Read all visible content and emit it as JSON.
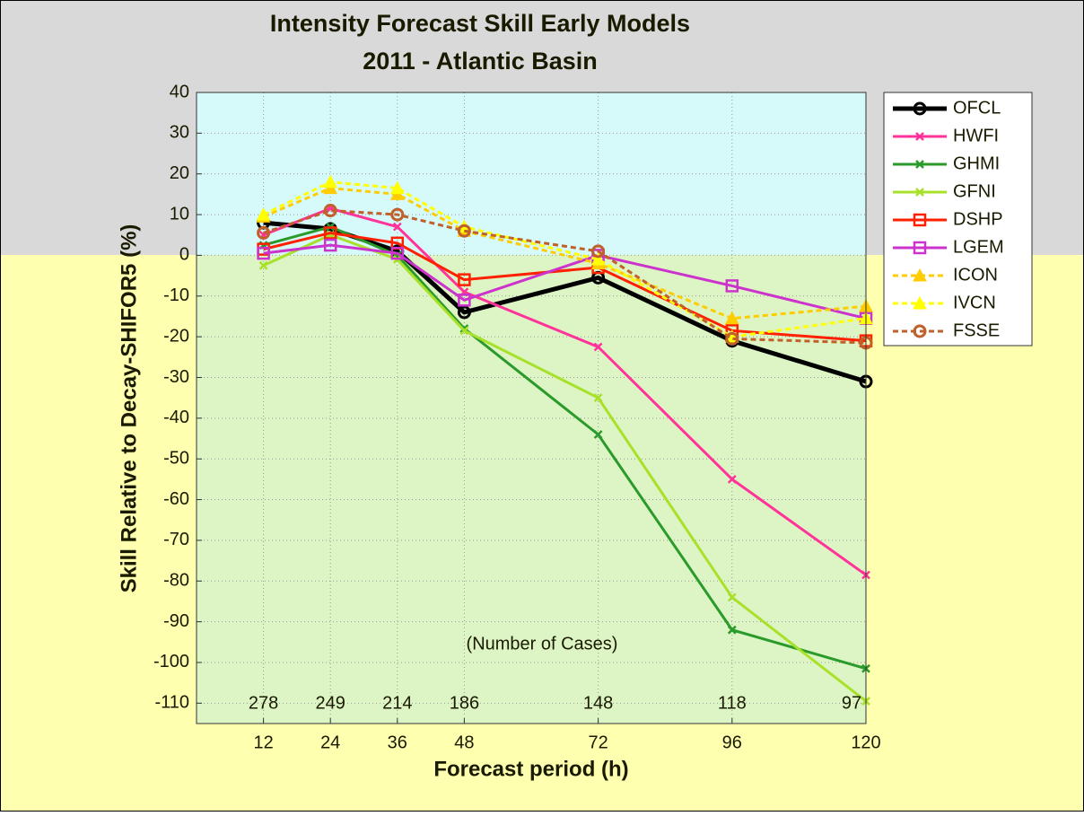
{
  "chart_data": {
    "type": "line",
    "title": "Intensity Forecast Skill Early Models",
    "subtitle": "2011 - Atlantic Basin",
    "y_label": "Skill Relative to Decay-SHIFOR5 (%)",
    "x_label": "Forecast period (h)",
    "annotation": "(Number of Cases)",
    "x": [
      12,
      24,
      36,
      48,
      72,
      96,
      120
    ],
    "cases": [
      "278",
      "249",
      "214",
      "186",
      "148",
      "118",
      "97"
    ],
    "xlim": [
      0,
      120
    ],
    "xticks": [
      12,
      24,
      36,
      48,
      72,
      96,
      120
    ],
    "ylim": [
      -115,
      40
    ],
    "yticks": [
      -110,
      -100,
      -90,
      -80,
      -70,
      -60,
      -50,
      -40,
      -30,
      -20,
      -10,
      0,
      10,
      20,
      30,
      40
    ],
    "grid": true,
    "series": [
      {
        "name": "OFCL",
        "color": "#000000",
        "marker": "circle",
        "dashed": false,
        "values": [
          8,
          6.5,
          1,
          -14,
          -5.5,
          -21,
          -31
        ]
      },
      {
        "name": "HWFI",
        "color": "#ff3399",
        "marker": "x",
        "dashed": false,
        "values": [
          5,
          11.5,
          7,
          -9,
          -22.5,
          -55,
          -78.5
        ]
      },
      {
        "name": "GHMI",
        "color": "#2a9a2a",
        "marker": "x",
        "dashed": false,
        "values": [
          2.5,
          7,
          0,
          -18,
          -44,
          -92,
          -101.5
        ]
      },
      {
        "name": "GFNI",
        "color": "#a8e02a",
        "marker": "x",
        "dashed": false,
        "values": [
          -2.5,
          5,
          -1,
          -18.5,
          -35,
          -84,
          -109.5
        ]
      },
      {
        "name": "DSHP",
        "color": "#ff2000",
        "marker": "square",
        "dashed": false,
        "values": [
          1.5,
          5.5,
          3,
          -6,
          -3,
          -18.5,
          -21
        ]
      },
      {
        "name": "LGEM",
        "color": "#cc33cc",
        "marker": "square",
        "dashed": false,
        "values": [
          0.5,
          2.5,
          0.5,
          -11,
          0,
          -7.5,
          -15.5
        ]
      },
      {
        "name": "ICON",
        "color": "#ffcc00",
        "marker": "triangle",
        "dashed": true,
        "values": [
          9.5,
          16.5,
          15,
          6,
          -2,
          -15.5,
          -12.5
        ]
      },
      {
        "name": "IVCN",
        "color": "#ffff00",
        "marker": "triangle",
        "dashed": true,
        "values": [
          10,
          18,
          16.5,
          7,
          -1,
          -20,
          -15.5
        ]
      },
      {
        "name": "FSSE",
        "color": "#c0602a",
        "marker": "circle",
        "dashed": true,
        "values": [
          5.5,
          11,
          10,
          6,
          1,
          -20.5,
          -21.5
        ]
      }
    ]
  }
}
